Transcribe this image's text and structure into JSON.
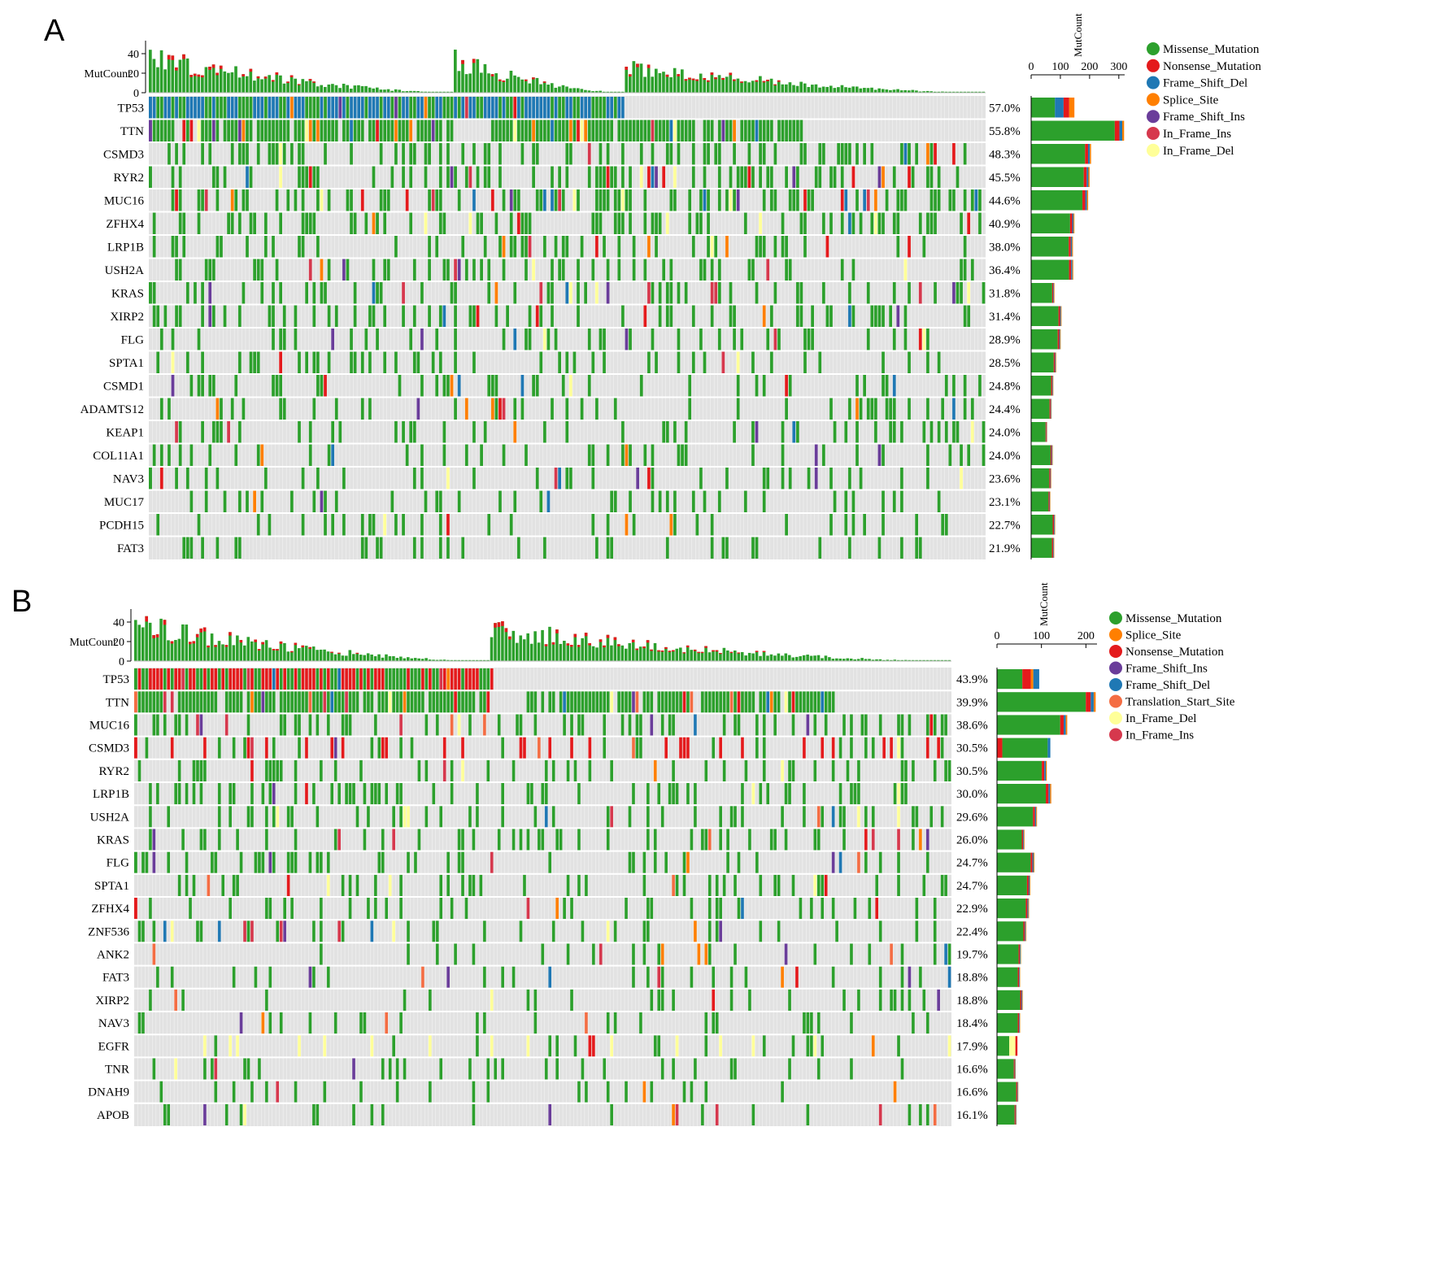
{
  "chart_data": [
    {
      "type": "oncoplot",
      "panel_label": "A",
      "top_bar_label": "MutCount",
      "top_bar_ticks": [
        0,
        20,
        40
      ],
      "side_bar_label": "MutCount",
      "side_bar_ticks": [
        0,
        100,
        200,
        300
      ],
      "side_bar_max": 320,
      "legend": [
        {
          "name": "Missense_Mutation",
          "color": "#2ca02c"
        },
        {
          "name": "Nonsense_Mutation",
          "color": "#e41a1c"
        },
        {
          "name": "Frame_Shift_Del",
          "color": "#1f78b4"
        },
        {
          "name": "Splice_Site",
          "color": "#ff7f00"
        },
        {
          "name": "Frame_Shift_Ins",
          "color": "#6a3d9a"
        },
        {
          "name": "In_Frame_Ins",
          "color": "#d6384d"
        },
        {
          "name": "In_Frame_Del",
          "color": "#ffff99"
        }
      ],
      "genes": [
        {
          "name": "TP53",
          "pct": "57.0%",
          "count": 148,
          "dominant": "Frame_Shift_Del"
        },
        {
          "name": "TTN",
          "pct": "55.8%",
          "count": 318
        },
        {
          "name": "CSMD3",
          "pct": "48.3%",
          "count": 205
        },
        {
          "name": "RYR2",
          "pct": "45.5%",
          "count": 200
        },
        {
          "name": "MUC16",
          "pct": "44.6%",
          "count": 195
        },
        {
          "name": "ZFHX4",
          "pct": "40.9%",
          "count": 148
        },
        {
          "name": "LRP1B",
          "pct": "38.0%",
          "count": 143
        },
        {
          "name": "USH2A",
          "pct": "36.4%",
          "count": 144
        },
        {
          "name": "KRAS",
          "pct": "31.8%",
          "count": 80
        },
        {
          "name": "XIRP2",
          "pct": "31.4%",
          "count": 104
        },
        {
          "name": "FLG",
          "pct": "28.9%",
          "count": 101
        },
        {
          "name": "SPTA1",
          "pct": "28.5%",
          "count": 86
        },
        {
          "name": "CSMD1",
          "pct": "24.8%",
          "count": 76
        },
        {
          "name": "ADAMTS12",
          "pct": "24.4%",
          "count": 70
        },
        {
          "name": "KEAP1",
          "pct": "24.0%",
          "count": 55
        },
        {
          "name": "COL11A1",
          "pct": "24.0%",
          "count": 74
        },
        {
          "name": "NAV3",
          "pct": "23.6%",
          "count": 69
        },
        {
          "name": "MUC17",
          "pct": "23.1%",
          "count": 66
        },
        {
          "name": "PCDH15",
          "pct": "22.7%",
          "count": 82
        },
        {
          "name": "FAT3",
          "pct": "21.9%",
          "count": 79
        }
      ]
    },
    {
      "type": "oncoplot",
      "panel_label": "B",
      "top_bar_label": "MutCount",
      "top_bar_ticks": [
        0,
        20,
        40
      ],
      "side_bar_label": "MutCount",
      "side_bar_ticks": [
        0,
        100,
        200
      ],
      "side_bar_max": 225,
      "legend": [
        {
          "name": "Missense_Mutation",
          "color": "#2ca02c"
        },
        {
          "name": "Splice_Site",
          "color": "#ff7f00"
        },
        {
          "name": "Nonsense_Mutation",
          "color": "#e41a1c"
        },
        {
          "name": "Frame_Shift_Ins",
          "color": "#6a3d9a"
        },
        {
          "name": "Frame_Shift_Del",
          "color": "#1f78b4"
        },
        {
          "name": "Translation_Start_Site",
          "color": "#f46d43"
        },
        {
          "name": "In_Frame_Del",
          "color": "#ffff99"
        },
        {
          "name": "In_Frame_Ins",
          "color": "#d6384d"
        }
      ],
      "genes": [
        {
          "name": "TP53",
          "pct": "43.9%",
          "count": 95,
          "dominant": "Nonsense_Mutation"
        },
        {
          "name": "TTN",
          "pct": "39.9%",
          "count": 222
        },
        {
          "name": "MUC16",
          "pct": "38.6%",
          "count": 158
        },
        {
          "name": "CSMD3",
          "pct": "30.5%",
          "count": 120,
          "dominant": "Nonsense_Mutation"
        },
        {
          "name": "RYR2",
          "pct": "30.5%",
          "count": 112
        },
        {
          "name": "LRP1B",
          "pct": "30.0%",
          "count": 122
        },
        {
          "name": "USH2A",
          "pct": "29.6%",
          "count": 90
        },
        {
          "name": "KRAS",
          "pct": "26.0%",
          "count": 62
        },
        {
          "name": "FLG",
          "pct": "24.7%",
          "count": 84
        },
        {
          "name": "SPTA1",
          "pct": "24.7%",
          "count": 75
        },
        {
          "name": "ZFHX4",
          "pct": "22.9%",
          "count": 72
        },
        {
          "name": "ZNF536",
          "pct": "22.4%",
          "count": 66
        },
        {
          "name": "ANK2",
          "pct": "19.7%",
          "count": 54
        },
        {
          "name": "FAT3",
          "pct": "18.8%",
          "count": 52
        },
        {
          "name": "XIRP2",
          "pct": "18.8%",
          "count": 58
        },
        {
          "name": "NAV3",
          "pct": "18.4%",
          "count": 52
        },
        {
          "name": "EGFR",
          "pct": "17.9%",
          "count": 46,
          "dominant": "In_Frame_Del"
        },
        {
          "name": "TNR",
          "pct": "16.6%",
          "count": 42
        },
        {
          "name": "DNAH9",
          "pct": "16.6%",
          "count": 48
        },
        {
          "name": "APOB",
          "pct": "16.1%",
          "count": 44
        }
      ]
    }
  ]
}
